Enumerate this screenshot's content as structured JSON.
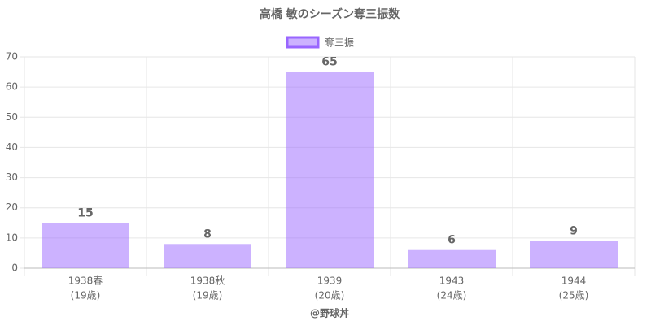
{
  "chart_data": {
    "type": "bar",
    "title": "高橋 敏のシーズン奪三振数",
    "categories": [
      [
        "1938春",
        "(19歳)"
      ],
      [
        "1938秋",
        "(19歳)"
      ],
      [
        "1939",
        "(20歳)"
      ],
      [
        "1943",
        "(24歳)"
      ],
      [
        "1944",
        "(25歳)"
      ]
    ],
    "series": [
      {
        "name": "奪三振",
        "color": "rgba(153,102,255,0.5)",
        "border_color": "#9966ff",
        "values": [
          15,
          8,
          65,
          6,
          9
        ]
      }
    ],
    "ylim": [
      0,
      70
    ],
    "yticks": [
      0,
      10,
      20,
      30,
      40,
      50,
      60,
      70
    ],
    "grid": true,
    "x_label": "@野球丼"
  }
}
